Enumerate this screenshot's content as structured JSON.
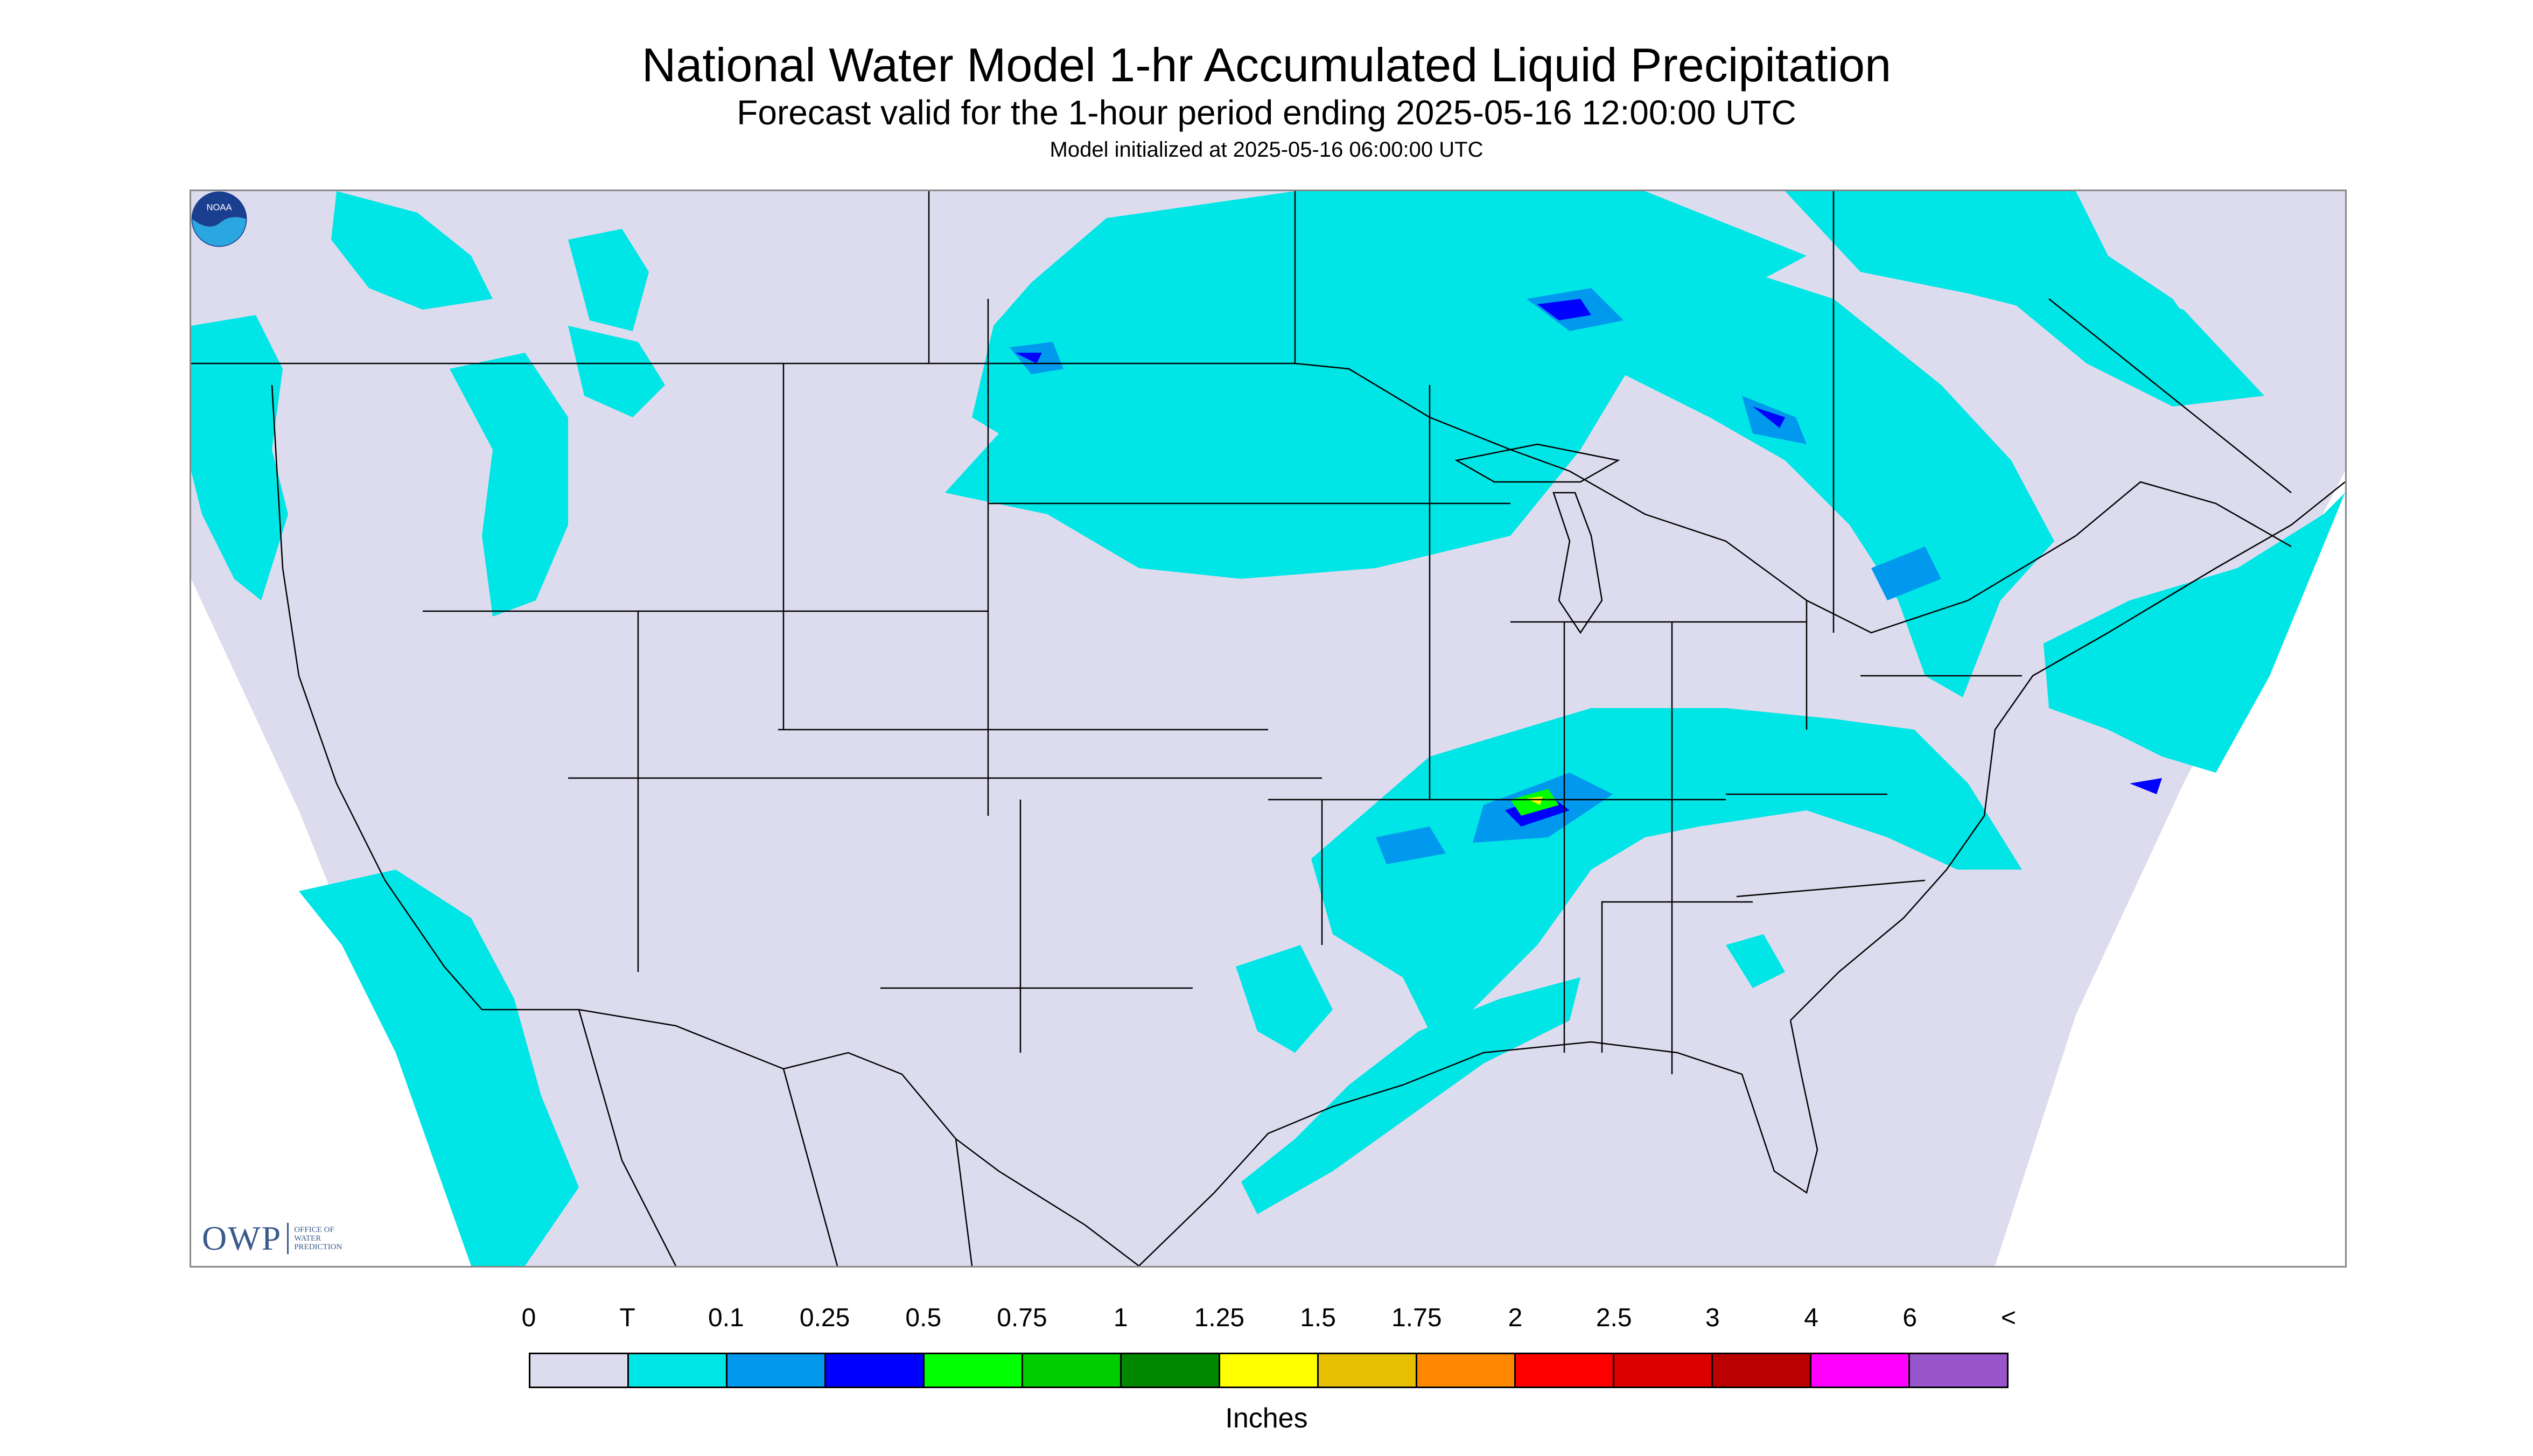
{
  "header": {
    "title": "National Water Model 1-hr Accumulated Liquid Precipitation",
    "subtitle": "Forecast valid for the 1-hour period ending 2025-05-16 12:00:00 UTC",
    "init_line": "Model initialized at 2025-05-16 06:00:00 UTC"
  },
  "map": {
    "background_color": "#dcdcee",
    "trace_color": "#00e5e5",
    "light_blue_color": "#0099ee",
    "blue_color": "#0000ff",
    "green_color": "#00ff00",
    "yellow_color": "#ffff00",
    "boundary_color": "#000000",
    "precip_regions": [
      "pacific-northwest",
      "northern-plains",
      "great-lakes-canada",
      "northeast-coast",
      "ohio-tennessee-valley",
      "texas-gulf-coast",
      "baja-pacific"
    ]
  },
  "owp_logo": {
    "mark": "OWP",
    "lines": [
      "OFFICE OF",
      "WATER",
      "PREDICTION"
    ]
  },
  "noaa_logo": {
    "text": "NOAA"
  },
  "legend": {
    "tick_labels": [
      "0",
      "T",
      "0.1",
      "0.25",
      "0.5",
      "0.75",
      "1",
      "1.25",
      "1.5",
      "1.75",
      "2",
      "2.5",
      "3",
      "4",
      "6",
      "<"
    ],
    "colors": [
      "#dcdcee",
      "#00e5e5",
      "#0099ee",
      "#0000ff",
      "#00ff00",
      "#00cc00",
      "#008800",
      "#ffff00",
      "#e6c000",
      "#ff8800",
      "#ff0000",
      "#dd0000",
      "#bb0000",
      "#ff00ff",
      "#9955cc"
    ],
    "unit_label": "Inches"
  }
}
